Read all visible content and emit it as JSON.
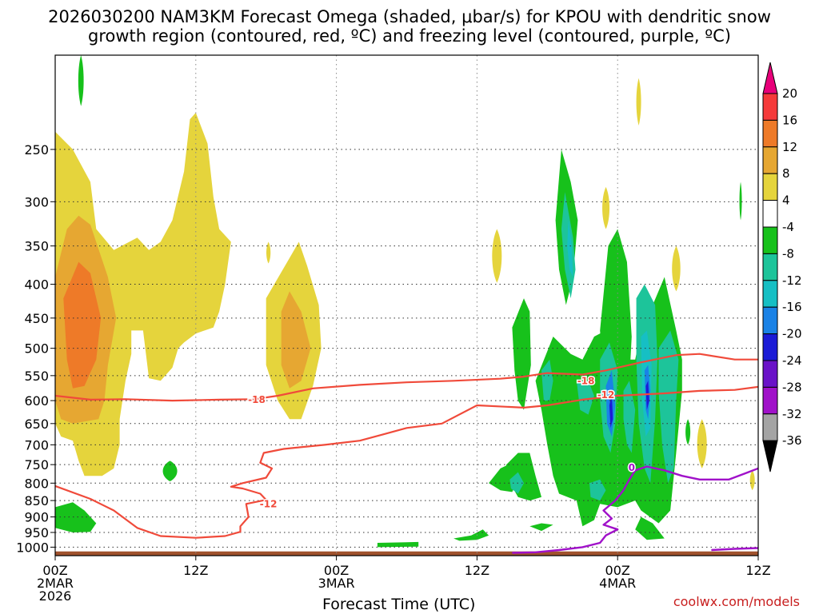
{
  "title": {
    "line1": "2026030200 NAM3KM Forecast Omega (shaded, μbar/s) for KPOU with dendritic snow",
    "line2": "growth region (contoured, red, ºC) and freezing level (contoured, purple, ºC)"
  },
  "credit": "coolwx.com/models",
  "chart_data": {
    "type": "heatmap",
    "title": "2026030200 NAM3KM Forecast Omega (shaded, μbar/s) for KPOU with dendritic snow growth region (contoured, red, ºC) and freezing level (contoured, purple, ºC)",
    "xlabel": "Forecast Time (UTC)",
    "ylabel": "",
    "x_range_hours": [
      0,
      60
    ],
    "y_scale": "log-pressure (inverted)",
    "y_range_hpa": [
      1030,
      180
    ],
    "x_ticks": [
      {
        "hour": 0,
        "label": "00Z",
        "sub": "2MAR",
        "sub2": "2026"
      },
      {
        "hour": 12,
        "label": "12Z",
        "sub": "",
        "sub2": ""
      },
      {
        "hour": 24,
        "label": "00Z",
        "sub": "3MAR",
        "sub2": ""
      },
      {
        "hour": 36,
        "label": "12Z",
        "sub": "",
        "sub2": ""
      },
      {
        "hour": 48,
        "label": "00Z",
        "sub": "4MAR",
        "sub2": ""
      },
      {
        "hour": 60,
        "label": "12Z",
        "sub": "",
        "sub2": ""
      }
    ],
    "y_ticks": [
      250,
      300,
      350,
      400,
      450,
      500,
      550,
      600,
      650,
      700,
      750,
      800,
      850,
      900,
      950,
      1000
    ],
    "colorbar": {
      "levels": [
        20,
        16,
        12,
        8,
        4,
        -4,
        -8,
        -12,
        -16,
        -20,
        -24,
        -28,
        -32,
        -36
      ],
      "colors": [
        {
          "range": "above 20",
          "color": "#e8007a"
        },
        {
          "range": "16 to 20",
          "color": "#f53a3a"
        },
        {
          "range": "12 to 16",
          "color": "#ee7a28"
        },
        {
          "range": "8 to 12",
          "color": "#e6a732"
        },
        {
          "range": "4 to 8",
          "color": "#e5d43c"
        },
        {
          "range": "-4 to 4",
          "color": "#ffffff"
        },
        {
          "range": "-8 to -4",
          "color": "#17c11b"
        },
        {
          "range": "-12 to -8",
          "color": "#1dc49a"
        },
        {
          "range": "-16 to -12",
          "color": "#16bfc4"
        },
        {
          "range": "-20 to -16",
          "color": "#1a82e6"
        },
        {
          "range": "-24 to -20",
          "color": "#1b1bd6"
        },
        {
          "range": "-28 to -24",
          "color": "#6a12c8"
        },
        {
          "range": "-32 to -28",
          "color": "#a011c9"
        },
        {
          "range": "-36 to -32",
          "color": "#a4a4a4"
        },
        {
          "range": "below -36",
          "color": "#000000"
        }
      ]
    },
    "contour_labels": [
      {
        "text": "-18",
        "hour": 17.2,
        "hpa": 598,
        "color": "#f04a3a"
      },
      {
        "text": "-12",
        "hour": 18.2,
        "hpa": 860,
        "color": "#f04a3a"
      },
      {
        "text": "-18",
        "hour": 45.3,
        "hpa": 560,
        "color": "#f04a3a"
      },
      {
        "text": "-12",
        "hour": 47.0,
        "hpa": 588,
        "color": "#f04a3a"
      },
      {
        "text": "0",
        "hour": 49.2,
        "hpa": 758,
        "color": "#a011c9"
      }
    ],
    "contour_red_upper": [
      [
        0,
        590
      ],
      [
        3,
        598
      ],
      [
        6,
        597
      ],
      [
        10,
        600
      ],
      [
        14,
        598
      ],
      [
        17,
        597
      ],
      [
        19,
        590
      ],
      [
        22,
        575
      ],
      [
        26,
        568
      ],
      [
        30,
        563
      ],
      [
        34,
        560
      ],
      [
        38,
        556
      ],
      [
        40,
        552
      ],
      [
        42,
        545
      ],
      [
        45,
        548
      ],
      [
        47,
        540
      ],
      [
        50,
        525
      ],
      [
        53,
        512
      ],
      [
        55,
        510
      ],
      [
        58,
        520
      ],
      [
        60,
        520
      ]
    ],
    "contour_red_lower": [
      [
        0,
        808
      ],
      [
        3,
        845
      ],
      [
        5,
        880
      ],
      [
        7,
        935
      ],
      [
        9,
        962
      ],
      [
        12,
        968
      ],
      [
        14.5,
        962
      ],
      [
        15.8,
        948
      ],
      [
        15.8,
        930
      ],
      [
        16.5,
        900
      ],
      [
        16.3,
        860
      ],
      [
        18,
        848
      ],
      [
        17.5,
        830
      ],
      [
        16,
        815
      ],
      [
        15,
        810
      ],
      [
        16,
        800
      ],
      [
        18,
        785
      ],
      [
        18.5,
        760
      ],
      [
        17.5,
        745
      ],
      [
        17.8,
        720
      ],
      [
        19.5,
        710
      ],
      [
        23,
        700
      ],
      [
        26,
        690
      ],
      [
        28,
        675
      ],
      [
        30,
        660
      ],
      [
        33,
        650
      ],
      [
        36,
        610
      ],
      [
        40,
        615
      ],
      [
        42,
        610
      ],
      [
        45,
        598
      ],
      [
        48,
        590
      ],
      [
        52,
        585
      ],
      [
        55,
        580
      ],
      [
        58,
        578
      ],
      [
        60,
        572
      ]
    ],
    "contour_purple": [
      [
        39,
        1020
      ],
      [
        41,
        1018
      ],
      [
        43,
        1010
      ],
      [
        45,
        1000
      ],
      [
        46.5,
        985
      ],
      [
        47,
        960
      ],
      [
        48,
        940
      ],
      [
        46.8,
        925
      ],
      [
        47.5,
        905
      ],
      [
        46.8,
        880
      ],
      [
        47.8,
        850
      ],
      [
        48.5,
        820
      ],
      [
        49,
        790
      ],
      [
        49.5,
        765
      ],
      [
        50.5,
        755
      ],
      [
        52,
        765
      ],
      [
        53.5,
        780
      ],
      [
        55,
        790
      ],
      [
        57.5,
        790
      ],
      [
        59,
        772
      ],
      [
        60,
        760
      ]
    ],
    "contour_purple_b": [
      [
        56,
        1010
      ],
      [
        58,
        1006
      ],
      [
        60,
        1003
      ]
    ],
    "surface_hpa": 1015
  }
}
